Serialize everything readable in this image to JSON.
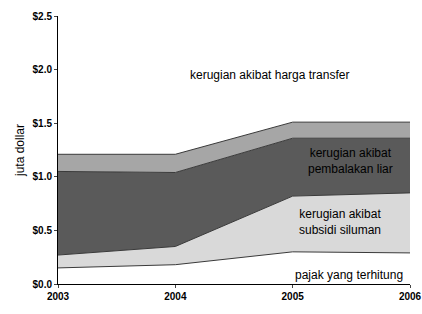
{
  "chart_data": {
    "type": "area",
    "stacked": true,
    "y_label": "juta dollar",
    "x": [
      2003,
      2004,
      2005,
      2006
    ],
    "xlim": [
      2003,
      2006
    ],
    "xticks": [
      2003,
      2004,
      2005,
      2006
    ],
    "ylim": [
      0,
      2.5
    ],
    "yticks": [
      {
        "value": 0,
        "label": "$0.0"
      },
      {
        "value": 0.5,
        "label": "$0.5"
      },
      {
        "value": 1.0,
        "label": "$1.0"
      },
      {
        "value": 1.5,
        "label": "$1.5"
      },
      {
        "value": 2.0,
        "label": "$2.0"
      },
      {
        "value": 2.5,
        "label": "$2.5"
      }
    ],
    "grid": false,
    "series": [
      {
        "name": "pajak yang terhitung",
        "color": "#ffffff",
        "values": [
          0.15,
          0.18,
          0.3,
          0.29
        ]
      },
      {
        "name": "kerugian akibat subsidi siluman",
        "color": "#d9d9d9",
        "values": [
          0.12,
          0.17,
          0.52,
          0.56
        ]
      },
      {
        "name": "kerugian akibat pembalakan liar",
        "color": "#5a5a5a",
        "values": [
          0.78,
          0.69,
          0.54,
          0.51
        ]
      },
      {
        "name": "kerugian akibat harga transfer",
        "color": "#a6a6a6",
        "values": [
          0.16,
          0.17,
          0.15,
          0.15
        ]
      }
    ]
  }
}
